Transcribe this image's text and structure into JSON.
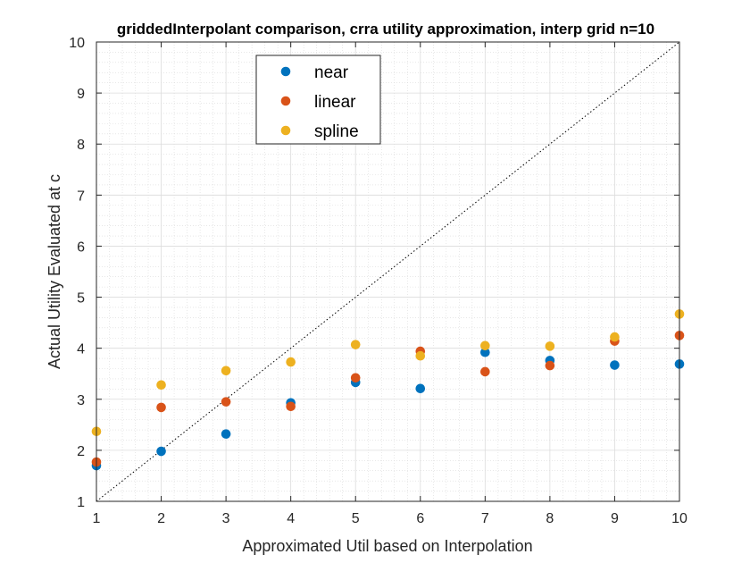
{
  "chart_data": {
    "type": "scatter",
    "title": "griddedInterpolant comparison, crra utility approximation, interp grid n=10",
    "xlabel": "Approximated Util based on  Interpolation",
    "ylabel": "Actual Utility Evaluated at c",
    "xlim": [
      1,
      10
    ],
    "ylim": [
      1,
      10
    ],
    "x_ticks": [
      "1",
      "2",
      "3",
      "4",
      "5",
      "6",
      "7",
      "8",
      "9",
      "10"
    ],
    "y_ticks": [
      "1",
      "2",
      "3",
      "4",
      "5",
      "6",
      "7",
      "8",
      "9",
      "10"
    ],
    "grid": true,
    "minor_grid": true,
    "legend_position": "top-center",
    "reference_line": {
      "style": "dotted",
      "color": "#000000",
      "x": [
        1,
        10
      ],
      "y": [
        1,
        10
      ]
    },
    "x": [
      1,
      2,
      3,
      4,
      5,
      6,
      7,
      8,
      9,
      10
    ],
    "series": [
      {
        "name": "near",
        "color": "#0072BD",
        "values": [
          1.7,
          1.98,
          2.32,
          2.93,
          3.33,
          3.21,
          3.92,
          3.76,
          3.67,
          3.69
        ]
      },
      {
        "name": "linear",
        "color": "#D95319",
        "values": [
          1.77,
          2.84,
          2.95,
          2.86,
          3.42,
          3.94,
          3.54,
          3.66,
          4.14,
          4.25
        ]
      },
      {
        "name": "spline",
        "color": "#EDB120",
        "values": [
          2.37,
          3.28,
          3.56,
          3.73,
          4.07,
          3.85,
          4.05,
          4.04,
          4.22,
          4.67
        ]
      }
    ]
  }
}
